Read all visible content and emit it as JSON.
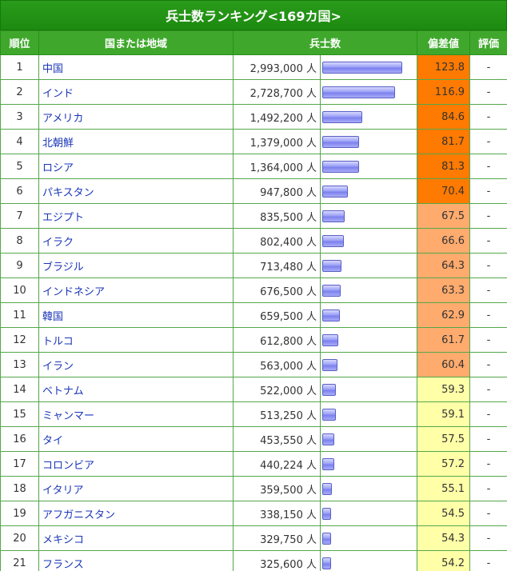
{
  "title": "兵士数ランキング<169カ国>",
  "headers": {
    "rank": "順位",
    "country": "国または地域",
    "soldiers": "兵士数",
    "deviation": "偏差値",
    "evaluation": "評価"
  },
  "unit": "人",
  "colors": {
    "header_green": "#3fa82c",
    "title_green": "#2a9b1a",
    "link_blue": "#1a35b8",
    "dev_high": "#ff7a00",
    "dev_mid": "#ffab6e",
    "dev_low": "#ffffa8"
  },
  "rows": [
    {
      "rank": "1",
      "country": "中国",
      "soldiers": "2,993,000",
      "soldiers_value": 2993000,
      "deviation": "123.8",
      "evaluation": "-",
      "dev_color": "#ff7a00"
    },
    {
      "rank": "2",
      "country": "インド",
      "soldiers": "2,728,700",
      "soldiers_value": 2728700,
      "deviation": "116.9",
      "evaluation": "-",
      "dev_color": "#ff7a00"
    },
    {
      "rank": "3",
      "country": "アメリカ",
      "soldiers": "1,492,200",
      "soldiers_value": 1492200,
      "deviation": "84.6",
      "evaluation": "-",
      "dev_color": "#ff7a00"
    },
    {
      "rank": "4",
      "country": "北朝鮮",
      "soldiers": "1,379,000",
      "soldiers_value": 1379000,
      "deviation": "81.7",
      "evaluation": "-",
      "dev_color": "#ff7a00"
    },
    {
      "rank": "5",
      "country": "ロシア",
      "soldiers": "1,364,000",
      "soldiers_value": 1364000,
      "deviation": "81.3",
      "evaluation": "-",
      "dev_color": "#ff7a00"
    },
    {
      "rank": "6",
      "country": "パキスタン",
      "soldiers": "947,800",
      "soldiers_value": 947800,
      "deviation": "70.4",
      "evaluation": "-",
      "dev_color": "#ff7a00"
    },
    {
      "rank": "7",
      "country": "エジプト",
      "soldiers": "835,500",
      "soldiers_value": 835500,
      "deviation": "67.5",
      "evaluation": "-",
      "dev_color": "#ffab6e"
    },
    {
      "rank": "8",
      "country": "イラク",
      "soldiers": "802,400",
      "soldiers_value": 802400,
      "deviation": "66.6",
      "evaluation": "-",
      "dev_color": "#ffab6e"
    },
    {
      "rank": "9",
      "country": "ブラジル",
      "soldiers": "713,480",
      "soldiers_value": 713480,
      "deviation": "64.3",
      "evaluation": "-",
      "dev_color": "#ffab6e"
    },
    {
      "rank": "10",
      "country": "インドネシア",
      "soldiers": "676,500",
      "soldiers_value": 676500,
      "deviation": "63.3",
      "evaluation": "-",
      "dev_color": "#ffab6e"
    },
    {
      "rank": "11",
      "country": "韓国",
      "soldiers": "659,500",
      "soldiers_value": 659500,
      "deviation": "62.9",
      "evaluation": "-",
      "dev_color": "#ffab6e"
    },
    {
      "rank": "12",
      "country": "トルコ",
      "soldiers": "612,800",
      "soldiers_value": 612800,
      "deviation": "61.7",
      "evaluation": "-",
      "dev_color": "#ffab6e"
    },
    {
      "rank": "13",
      "country": "イラン",
      "soldiers": "563,000",
      "soldiers_value": 563000,
      "deviation": "60.4",
      "evaluation": "-",
      "dev_color": "#ffab6e"
    },
    {
      "rank": "14",
      "country": "ベトナム",
      "soldiers": "522,000",
      "soldiers_value": 522000,
      "deviation": "59.3",
      "evaluation": "-",
      "dev_color": "#ffffa8"
    },
    {
      "rank": "15",
      "country": "ミャンマー",
      "soldiers": "513,250",
      "soldiers_value": 513250,
      "deviation": "59.1",
      "evaluation": "-",
      "dev_color": "#ffffa8"
    },
    {
      "rank": "16",
      "country": "タイ",
      "soldiers": "453,550",
      "soldiers_value": 453550,
      "deviation": "57.5",
      "evaluation": "-",
      "dev_color": "#ffffa8"
    },
    {
      "rank": "17",
      "country": "コロンビア",
      "soldiers": "440,224",
      "soldiers_value": 440224,
      "deviation": "57.2",
      "evaluation": "-",
      "dev_color": "#ffffa8"
    },
    {
      "rank": "18",
      "country": "イタリア",
      "soldiers": "359,500",
      "soldiers_value": 359500,
      "deviation": "55.1",
      "evaluation": "-",
      "dev_color": "#ffffa8"
    },
    {
      "rank": "19",
      "country": "アフガニスタン",
      "soldiers": "338,150",
      "soldiers_value": 338150,
      "deviation": "54.5",
      "evaluation": "-",
      "dev_color": "#ffffa8"
    },
    {
      "rank": "20",
      "country": "メキシコ",
      "soldiers": "329,750",
      "soldiers_value": 329750,
      "deviation": "54.3",
      "evaluation": "-",
      "dev_color": "#ffffa8"
    },
    {
      "rank": "21",
      "country": "フランス",
      "soldiers": "325,600",
      "soldiers_value": 325600,
      "deviation": "54.2",
      "evaluation": "-",
      "dev_color": "#ffffa8"
    }
  ]
}
